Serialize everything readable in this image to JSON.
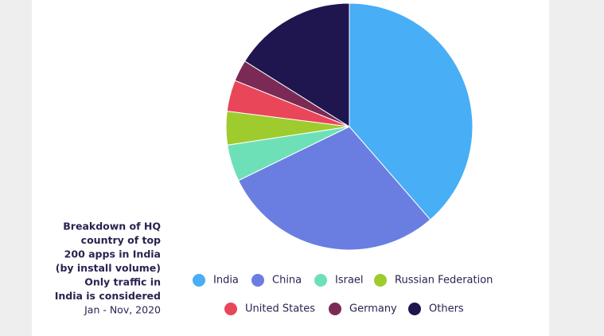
{
  "chart_data": {
    "type": "pie",
    "caption_lines": [
      "Breakdown of HQ",
      "country of top",
      "200 apps in India",
      "(by install volume)",
      "Only traffic in",
      "India is considered"
    ],
    "date_range": "Jan - Nov, 2020",
    "categories": [
      "India",
      "China",
      "Israel",
      "Russian Federation",
      "United States",
      "Germany",
      "Others"
    ],
    "values": [
      38.6,
      29.2,
      4.8,
      4.4,
      4.1,
      2.8,
      16.1
    ],
    "colors": [
      "#48aef5",
      "#6a7ee2",
      "#6ee0b8",
      "#9ecb2e",
      "#e9465a",
      "#7b2a55",
      "#1f1650"
    ]
  }
}
